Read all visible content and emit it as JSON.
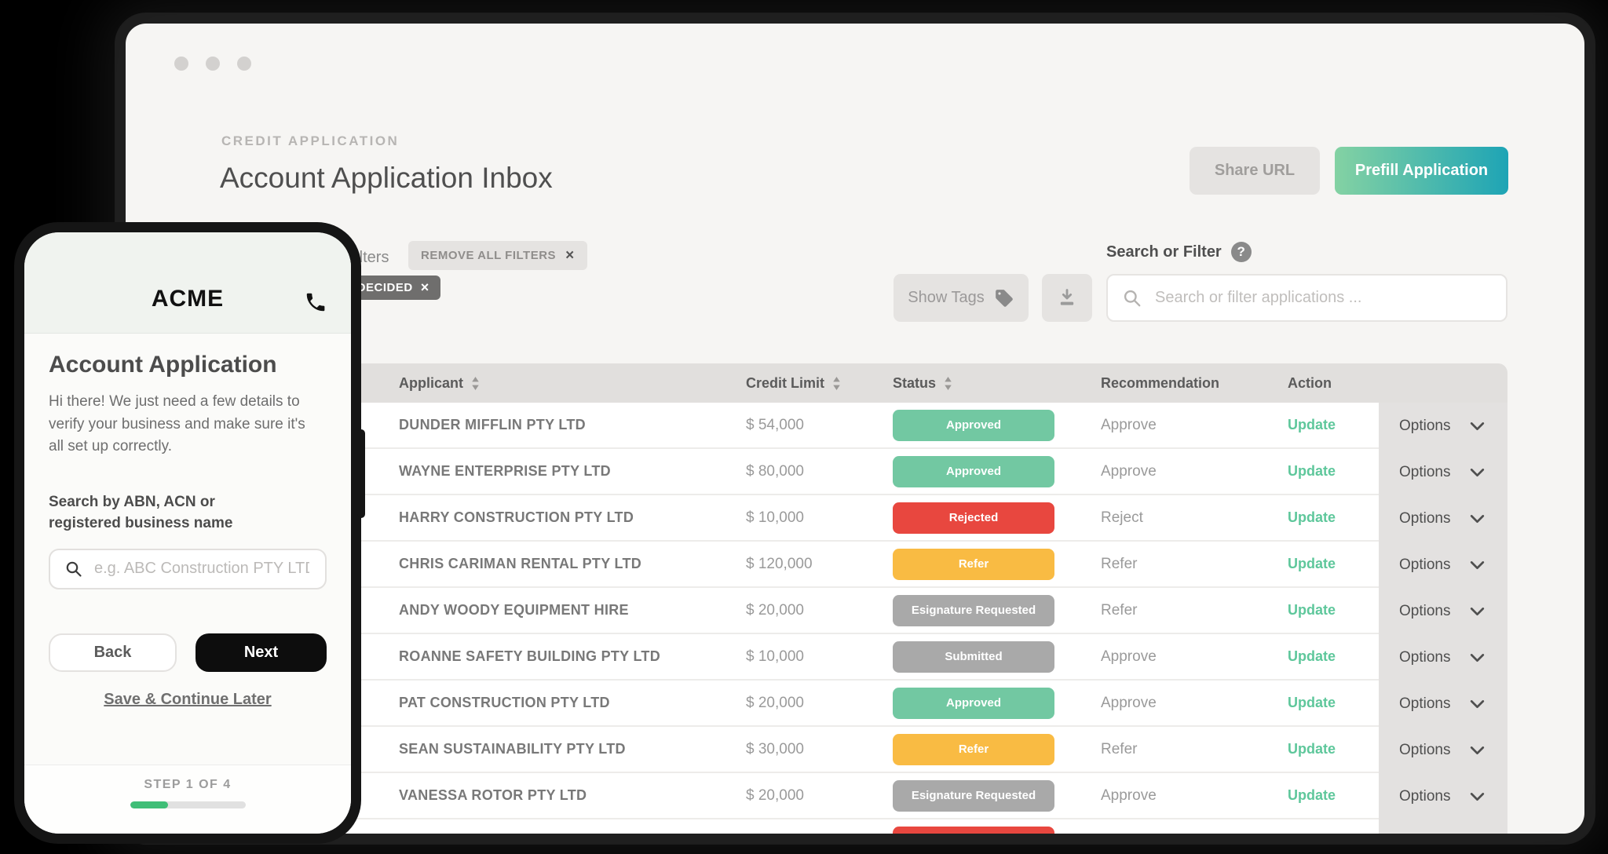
{
  "colors": {
    "status_approved": "#72c8a2",
    "status_rejected": "#e8473f",
    "status_refer": "#f9bb43",
    "status_pending": "#a9a9a9",
    "update_link": "#5ec79b",
    "prefill_gradient_start": "#84d2a3",
    "prefill_gradient_end": "#1ea4b5",
    "progress_fill": "#3fbe77"
  },
  "window": {
    "eyebrow": "CREDIT APPLICATION",
    "title": "Account Application Inbox",
    "buttons": {
      "share": "Share URL",
      "prefill": "Prefill Application"
    },
    "filters": {
      "label": "Filters",
      "remove_all_chip": "REMOVE ALL FILTERS",
      "status_chip": "UNDECIDED",
      "close_glyph": "×"
    },
    "toolbar": {
      "show_tags": "Show Tags",
      "search_label": "Search or Filter",
      "help_glyph": "?",
      "search_placeholder": "Search or filter applications ..."
    },
    "table": {
      "columns": [
        "Applicant",
        "Credit Limit",
        "Status",
        "Recommendation",
        "Action"
      ],
      "update_label": "Update",
      "options_label": "Options",
      "rows": [
        {
          "applicant": "DUNDER MIFFLIN PTY LTD",
          "credit_limit": "$ 54,000",
          "status": "Approved",
          "status_type": "approved",
          "recommendation": "Approve"
        },
        {
          "applicant": "WAYNE ENTERPRISE PTY LTD",
          "credit_limit": "$ 80,000",
          "status": "Approved",
          "status_type": "approved",
          "recommendation": "Approve"
        },
        {
          "applicant": "HARRY CONSTRUCTION PTY LTD",
          "credit_limit": "$ 10,000",
          "status": "Rejected",
          "status_type": "rejected",
          "recommendation": "Reject"
        },
        {
          "applicant": "CHRIS CARIMAN RENTAL PTY LTD",
          "credit_limit": "$ 120,000",
          "status": "Refer",
          "status_type": "refer",
          "recommendation": "Refer"
        },
        {
          "applicant": "ANDY WOODY EQUIPMENT HIRE",
          "credit_limit": "$ 20,000",
          "status": "Esignature Requested",
          "status_type": "pending",
          "recommendation": "Refer"
        },
        {
          "applicant": "ROANNE SAFETY BUILDING PTY LTD",
          "credit_limit": "$ 10,000",
          "status": "Submitted",
          "status_type": "pending",
          "recommendation": "Approve"
        },
        {
          "applicant": "PAT CONSTRUCTION PTY LTD",
          "credit_limit": "$ 20,000",
          "status": "Approved",
          "status_type": "approved",
          "recommendation": "Approve"
        },
        {
          "applicant": "SEAN SUSTAINABILITY PTY LTD",
          "credit_limit": "$ 30,000",
          "status": "Refer",
          "status_type": "refer",
          "recommendation": "Refer"
        },
        {
          "applicant": "VANESSA ROTOR PTY LTD",
          "credit_limit": "$ 20,000",
          "status": "Esignature Requested",
          "status_type": "pending",
          "recommendation": "Approve"
        }
      ],
      "partial_row": {
        "status_type": "rejected"
      }
    }
  },
  "phone": {
    "brand": "ACME",
    "heading": "Account Application",
    "intro": "Hi there! We just need a few details to verify your business and make sure it's all set up correctly.",
    "search_label": "Search by ABN, ACN or registered business name",
    "search_placeholder": "e.g. ABC Construction PTY LTD",
    "back_button": "Back",
    "next_button": "Next",
    "save_link": "Save & Continue Later",
    "step_label": "STEP 1 OF 4",
    "progress_percent": 33
  }
}
